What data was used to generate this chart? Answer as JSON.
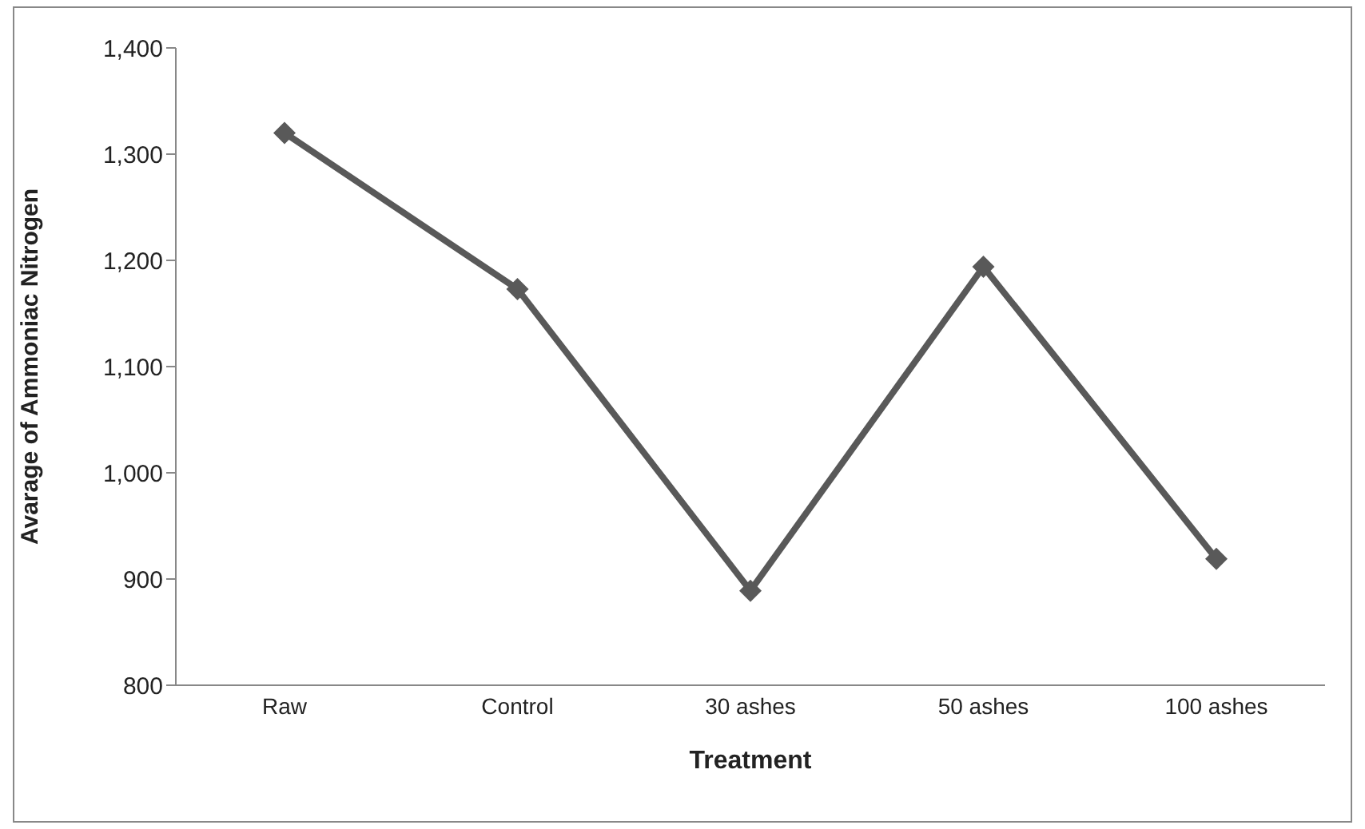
{
  "chart_data": {
    "type": "line",
    "xlabel": "Treatment",
    "ylabel": "Avarage of Ammoniac Nitrogen",
    "categories": [
      "Raw",
      "Control",
      "30 ashes",
      "50 ashes",
      "100 ashes"
    ],
    "series": [
      {
        "color": "#595959",
        "values": [
          1320,
          1173,
          889,
          1194,
          919
        ]
      }
    ],
    "ylim": [
      800,
      1400
    ],
    "yticks": [
      {
        "value": 800,
        "label": "800"
      },
      {
        "value": 900,
        "label": "900"
      },
      {
        "value": 1000,
        "label": "1,000"
      },
      {
        "value": 1100,
        "label": "1,100"
      },
      {
        "value": 1200,
        "label": "1,200"
      },
      {
        "value": 1300,
        "label": "1,300"
      },
      {
        "value": 1400,
        "label": "1,400"
      }
    ],
    "grid": false,
    "legend": false,
    "marker": "diamond",
    "line_style": "solid"
  }
}
